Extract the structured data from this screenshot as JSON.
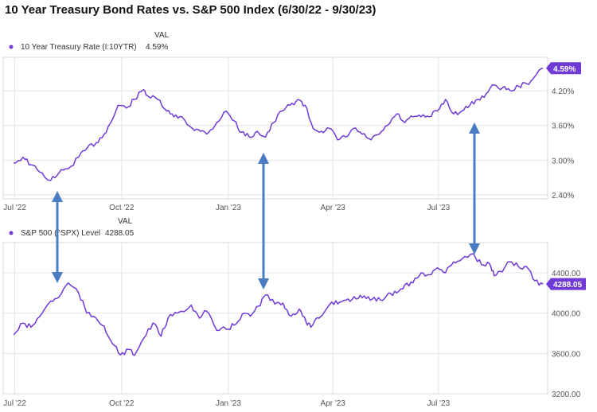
{
  "title": "10 Year Treasury Bond Rates vs. S&P 500 Index (6/30/22 - 9/30/23)",
  "accent_color": "#6f3ad6",
  "arrow_color": "#4a7cc4",
  "chart_data": [
    {
      "type": "line",
      "legend": {
        "header": "VAL",
        "name": "10 Year Treasury Rate (I:10YTR)",
        "value": "4.59%"
      },
      "badge": "4.59%",
      "x_tick_labels": [
        "Jul '22",
        "Oct '22",
        "Jan '23",
        "Apr '23",
        "Jul '23"
      ],
      "y_tick_labels": [
        "2.40%",
        "3.00%",
        "3.60%",
        "4.20%"
      ],
      "y_ticks": [
        2.4,
        3.0,
        3.6,
        4.2
      ],
      "ylim": [
        2.33,
        4.78
      ],
      "grid": true,
      "series": [
        {
          "name": "10 Year Treasury Rate (I:10YTR)",
          "x": [
            "2022-06-30",
            "2022-07-08",
            "2022-07-15",
            "2022-07-22",
            "2022-08-01",
            "2022-08-08",
            "2022-08-16",
            "2022-08-25",
            "2022-09-01",
            "2022-09-09",
            "2022-09-16",
            "2022-09-23",
            "2022-09-28",
            "2022-10-05",
            "2022-10-12",
            "2022-10-20",
            "2022-10-24",
            "2022-11-01",
            "2022-11-09",
            "2022-11-15",
            "2022-11-22",
            "2022-12-01",
            "2022-12-08",
            "2022-12-15",
            "2022-12-22",
            "2022-12-30",
            "2023-01-06",
            "2023-01-12",
            "2023-01-19",
            "2023-01-26",
            "2023-02-02",
            "2023-02-09",
            "2023-02-16",
            "2023-02-23",
            "2023-03-02",
            "2023-03-08",
            "2023-03-15",
            "2023-03-22",
            "2023-03-29",
            "2023-04-05",
            "2023-04-12",
            "2023-04-19",
            "2023-04-26",
            "2023-05-04",
            "2023-05-11",
            "2023-05-18",
            "2023-05-26",
            "2023-06-02",
            "2023-06-09",
            "2023-06-16",
            "2023-06-23",
            "2023-06-30",
            "2023-07-07",
            "2023-07-14",
            "2023-07-21",
            "2023-07-28",
            "2023-08-04",
            "2023-08-11",
            "2023-08-18",
            "2023-08-25",
            "2023-09-01",
            "2023-09-08",
            "2023-09-15",
            "2023-09-22",
            "2023-09-29"
          ],
          "values": [
            2.95,
            3.05,
            2.92,
            2.8,
            2.65,
            2.78,
            2.85,
            3.05,
            3.2,
            3.3,
            3.45,
            3.7,
            3.95,
            3.9,
            4.05,
            4.22,
            4.1,
            4.05,
            3.85,
            3.75,
            3.75,
            3.55,
            3.5,
            3.48,
            3.65,
            3.85,
            3.68,
            3.48,
            3.4,
            3.5,
            3.4,
            3.65,
            3.85,
            3.95,
            4.05,
            3.95,
            3.55,
            3.5,
            3.55,
            3.35,
            3.4,
            3.55,
            3.45,
            3.35,
            3.45,
            3.6,
            3.8,
            3.65,
            3.75,
            3.75,
            3.75,
            3.85,
            4.05,
            3.8,
            3.85,
            3.95,
            4.05,
            4.15,
            4.3,
            4.25,
            4.2,
            4.28,
            4.32,
            4.45,
            4.59
          ]
        }
      ]
    },
    {
      "type": "line",
      "legend": {
        "header": "VAL",
        "name": "S&P 500 (^SPX) Level",
        "value": "4288.05"
      },
      "badge": "4288.05",
      "x_tick_labels": [
        "Jul '22",
        "Oct '22",
        "Jan '23",
        "Apr '23",
        "Jul '23"
      ],
      "y_tick_labels": [
        "3200.00",
        "3600.00",
        "4000.00",
        "4400.00"
      ],
      "y_ticks": [
        3200,
        3600,
        4000,
        4400
      ],
      "ylim": [
        3200,
        4700
      ],
      "grid": true,
      "series": [
        {
          "name": "S&P 500 (^SPX) Level",
          "x": [
            "2022-06-30",
            "2022-07-08",
            "2022-07-15",
            "2022-07-22",
            "2022-08-01",
            "2022-08-08",
            "2022-08-16",
            "2022-08-25",
            "2022-09-01",
            "2022-09-09",
            "2022-09-16",
            "2022-09-23",
            "2022-09-30",
            "2022-10-07",
            "2022-10-12",
            "2022-10-20",
            "2022-10-28",
            "2022-11-04",
            "2022-11-10",
            "2022-11-18",
            "2022-11-30",
            "2022-12-07",
            "2022-12-13",
            "2022-12-22",
            "2022-12-30",
            "2023-01-06",
            "2023-01-13",
            "2023-01-20",
            "2023-01-27",
            "2023-02-02",
            "2023-02-10",
            "2023-02-17",
            "2023-02-24",
            "2023-03-03",
            "2023-03-09",
            "2023-03-13",
            "2023-03-20",
            "2023-03-31",
            "2023-04-07",
            "2023-04-14",
            "2023-04-21",
            "2023-04-28",
            "2023-05-05",
            "2023-05-12",
            "2023-05-19",
            "2023-05-26",
            "2023-06-02",
            "2023-06-09",
            "2023-06-16",
            "2023-06-23",
            "2023-06-30",
            "2023-07-07",
            "2023-07-14",
            "2023-07-21",
            "2023-07-31",
            "2023-08-07",
            "2023-08-14",
            "2023-08-18",
            "2023-08-25",
            "2023-08-31",
            "2023-09-08",
            "2023-09-15",
            "2023-09-22",
            "2023-09-29"
          ],
          "values": [
            3785,
            3900,
            3860,
            3960,
            4120,
            4160,
            4300,
            4200,
            4000,
            3950,
            3870,
            3700,
            3585,
            3640,
            3580,
            3750,
            3900,
            3770,
            3950,
            4000,
            4080,
            3950,
            4020,
            3830,
            3840,
            3880,
            3990,
            3970,
            4070,
            4180,
            4090,
            4100,
            3970,
            4040,
            3910,
            3860,
            3950,
            4110,
            4110,
            4140,
            4140,
            4170,
            4140,
            4130,
            4200,
            4200,
            4280,
            4300,
            4400,
            4380,
            4450,
            4400,
            4510,
            4535,
            4590,
            4480,
            4490,
            4370,
            4410,
            4510,
            4460,
            4460,
            4320,
            4288
          ]
        }
      ]
    }
  ]
}
